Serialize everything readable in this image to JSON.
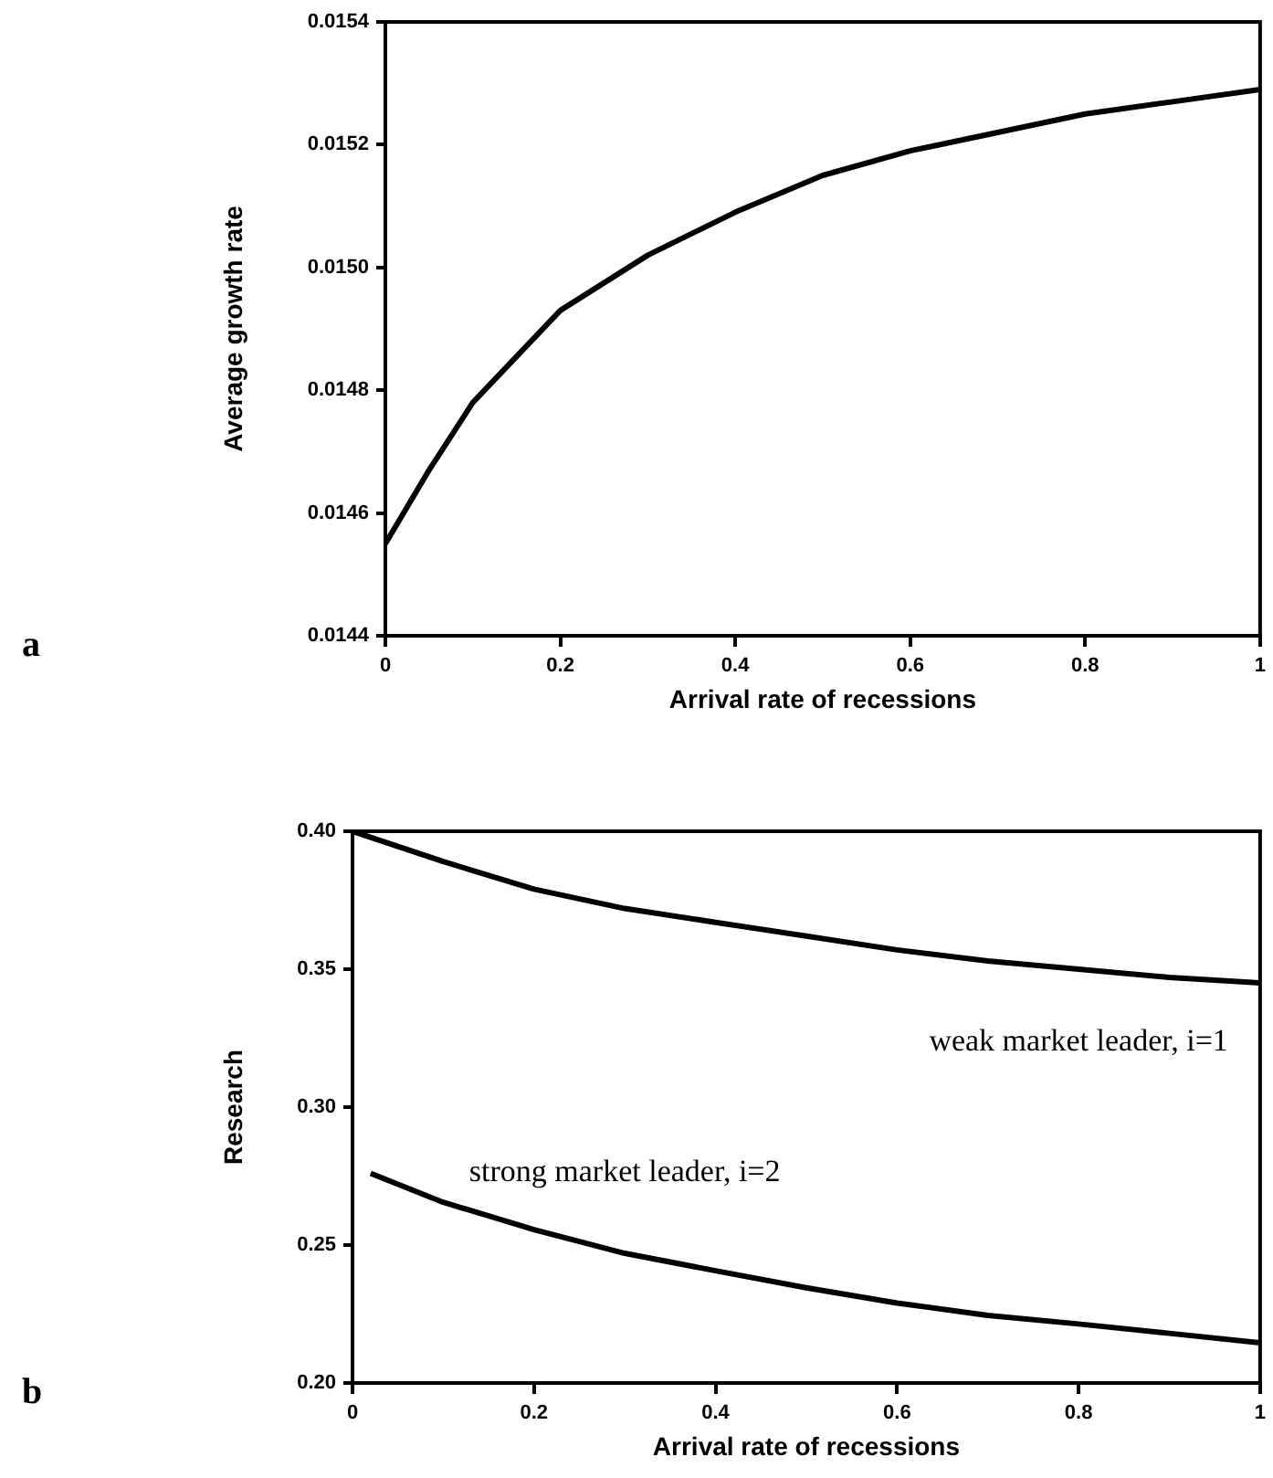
{
  "chart_data": [
    {
      "type": "line",
      "xlabel": "Arrival rate of recessions",
      "ylabel": "Average growth rate",
      "annotations": [
        "a"
      ],
      "xlim": [
        0,
        1
      ],
      "xticks": [
        0,
        0.2,
        0.4,
        0.6,
        0.8,
        1
      ],
      "ylim": [
        0.0144,
        0.0154
      ],
      "yticks": [
        0.0144,
        0.0146,
        0.0148,
        {
          "value": 0.015,
          "label": "0.0150"
        },
        0.0152,
        0.0154
      ],
      "grid": false,
      "legend": false,
      "marker": "none",
      "line_style": "solid",
      "series": [
        {
          "color": "#000000",
          "x": [
            0,
            0.05,
            0.1,
            0.2,
            0.3,
            0.4,
            0.5,
            0.6,
            0.7,
            0.8,
            0.9,
            1
          ],
          "values": [
            0.01455,
            0.01467,
            0.01478,
            0.01493,
            0.01502,
            0.01509,
            0.01515,
            0.01519,
            0.01522,
            0.01525,
            0.01527,
            0.01529
          ]
        }
      ]
    },
    {
      "type": "line",
      "xlabel": "Arrival rate of recessions",
      "ylabel": "Research",
      "annotations": [
        "b"
      ],
      "xlim": [
        0,
        1
      ],
      "xticks": [
        0,
        0.2,
        0.4,
        0.6,
        0.8,
        1
      ],
      "ylim": [
        0.2,
        0.4
      ],
      "yticks": [
        {
          "value": 0.2,
          "label": "0.20"
        },
        {
          "value": 0.25,
          "label": "0.25"
        },
        {
          "value": 0.3,
          "label": "0.30"
        },
        {
          "value": 0.35,
          "label": "0.35"
        },
        {
          "value": 0.4,
          "label": "0.40"
        }
      ],
      "grid": false,
      "legend": false,
      "marker": "none",
      "line_style": "solid",
      "series": [
        {
          "name": "weak market leader, i=1",
          "color": "#000000",
          "x": [
            0,
            0.1,
            0.2,
            0.3,
            0.4,
            0.5,
            0.6,
            0.7,
            0.8,
            0.9,
            1
          ],
          "values": [
            0.4,
            0.389,
            0.379,
            0.372,
            0.367,
            0.362,
            0.357,
            0.353,
            0.35,
            0.347,
            0.345
          ]
        },
        {
          "name": "strong market leader, i=2",
          "color": "#000000",
          "x": [
            0.02,
            0.1,
            0.2,
            0.3,
            0.4,
            0.5,
            0.6,
            0.7,
            0.8,
            0.9,
            1
          ],
          "values": [
            0.276,
            0.2655,
            0.2556,
            0.247,
            0.2407,
            0.2345,
            0.229,
            0.2245,
            0.2214,
            0.218,
            0.2146
          ]
        }
      ]
    }
  ]
}
